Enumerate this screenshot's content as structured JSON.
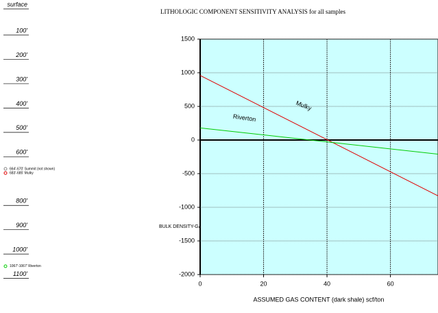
{
  "well_log": {
    "depths": [
      {
        "label": "surface",
        "value": 0
      },
      {
        "label": "100'",
        "value": 100
      },
      {
        "label": "200'",
        "value": 200
      },
      {
        "label": "300'",
        "value": 300
      },
      {
        "label": "400'",
        "value": 400
      },
      {
        "label": "500'",
        "value": 500
      },
      {
        "label": "600'",
        "value": 600
      },
      {
        "label": "800'",
        "value": 800
      },
      {
        "label": "900'",
        "value": 900
      },
      {
        "label": "1000'",
        "value": 1000
      },
      {
        "label": "1100'",
        "value": 1100
      }
    ],
    "markers": [
      {
        "label": "664'-670' Summit (not shown)",
        "color": "#888888",
        "depth": 667
      },
      {
        "label": "683'-685' Mulky",
        "color": "#e00000",
        "depth": 684
      },
      {
        "label": "1067'-1067' Riverton",
        "color": "#00cc00",
        "depth": 1067
      }
    ]
  },
  "chart_data": {
    "type": "line",
    "title": "LITHOLOGIC COMPONENT SENSITIVITY ANALYSIS for all samples",
    "x_label": "ASSUMED GAS CONTENT (dark shale) scf/ton",
    "y_label": "BULK DENSITY-GAS CONTENT scf/ton",
    "x": [
      0,
      75
    ],
    "series": [
      {
        "name": "Mulky",
        "color": "#e00000",
        "values": [
          960,
          -830
        ]
      },
      {
        "name": "Riverton",
        "color": "#00cc00",
        "values": [
          180,
          -210
        ]
      }
    ],
    "xlim": [
      0,
      75
    ],
    "xticks": [
      0,
      20,
      40,
      60
    ],
    "ylim": [
      -2000,
      1500
    ],
    "yticks": [
      -2000,
      -1500,
      -1000,
      -500,
      0,
      500,
      1000,
      1500
    ],
    "grid": true,
    "background": "#ccffff"
  }
}
